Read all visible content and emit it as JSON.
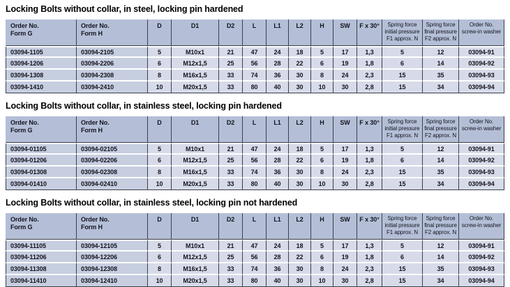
{
  "colors": {
    "header_bg": "#b4bfd7",
    "row_bg_order_columns": "#c6cee0",
    "row_bg_value_columns": "#d7dbe9",
    "grid_line": "#3b3f49",
    "row_gap": "#ffffff",
    "text": "#14141e"
  },
  "columns": [
    {
      "label": "Order No.\nForm G"
    },
    {
      "label": "Order No.\nForm H"
    },
    {
      "label": "D"
    },
    {
      "label": "D1"
    },
    {
      "label": "D2"
    },
    {
      "label": "L"
    },
    {
      "label": "L1"
    },
    {
      "label": "L2"
    },
    {
      "label": "H"
    },
    {
      "label": "SW"
    },
    {
      "label": "F x 30°"
    },
    {
      "label": "Spring force\ninitial pressure\nF1 approx. N"
    },
    {
      "label": "Spring force\nfinal pressure\nF2 approx. N"
    },
    {
      "label": "Order No.\nscrew-in washer"
    }
  ],
  "tables": [
    {
      "title": "Locking Bolts without collar, in steel, locking pin hardened",
      "rows": [
        [
          "03094-1105",
          "03094-2105",
          "5",
          "M10x1",
          "21",
          "47",
          "24",
          "18",
          "5",
          "17",
          "1,3",
          "5",
          "12",
          "03094-91"
        ],
        [
          "03094-1206",
          "03094-2206",
          "6",
          "M12x1,5",
          "25",
          "56",
          "28",
          "22",
          "6",
          "19",
          "1,8",
          "6",
          "14",
          "03094-92"
        ],
        [
          "03094-1308",
          "03094-2308",
          "8",
          "M16x1,5",
          "33",
          "74",
          "36",
          "30",
          "8",
          "24",
          "2,3",
          "15",
          "35",
          "03094-93"
        ],
        [
          "03094-1410",
          "03094-2410",
          "10",
          "M20x1,5",
          "33",
          "80",
          "40",
          "30",
          "10",
          "30",
          "2,8",
          "15",
          "34",
          "03094-94"
        ]
      ]
    },
    {
      "title": "Locking Bolts without collar, in stainless steel, locking pin hardened",
      "rows": [
        [
          "03094-01105",
          "03094-02105",
          "5",
          "M10x1",
          "21",
          "47",
          "24",
          "18",
          "5",
          "17",
          "1,3",
          "5",
          "12",
          "03094-91"
        ],
        [
          "03094-01206",
          "03094-02206",
          "6",
          "M12x1,5",
          "25",
          "56",
          "28",
          "22",
          "6",
          "19",
          "1,8",
          "6",
          "14",
          "03094-92"
        ],
        [
          "03094-01308",
          "03094-02308",
          "8",
          "M16x1,5",
          "33",
          "74",
          "36",
          "30",
          "8",
          "24",
          "2,3",
          "15",
          "35",
          "03094-93"
        ],
        [
          "03094-01410",
          "03094-02410",
          "10",
          "M20x1,5",
          "33",
          "80",
          "40",
          "30",
          "10",
          "30",
          "2,8",
          "15",
          "34",
          "03094-94"
        ]
      ]
    },
    {
      "title": "Locking Bolts without collar, in stainless steel, locking pin not hardened",
      "rows": [
        [
          "03094-11105",
          "03094-12105",
          "5",
          "M10x1",
          "21",
          "47",
          "24",
          "18",
          "5",
          "17",
          "1,3",
          "5",
          "12",
          "03094-91"
        ],
        [
          "03094-11206",
          "03094-12206",
          "6",
          "M12x1,5",
          "25",
          "56",
          "28",
          "22",
          "6",
          "19",
          "1,8",
          "6",
          "14",
          "03094-92"
        ],
        [
          "03094-11308",
          "03094-12308",
          "8",
          "M16x1,5",
          "33",
          "74",
          "36",
          "30",
          "8",
          "24",
          "2,3",
          "15",
          "35",
          "03094-93"
        ],
        [
          "03094-11410",
          "03094-12410",
          "10",
          "M20x1,5",
          "33",
          "80",
          "40",
          "30",
          "10",
          "30",
          "2,8",
          "15",
          "34",
          "03094-94"
        ]
      ]
    }
  ]
}
